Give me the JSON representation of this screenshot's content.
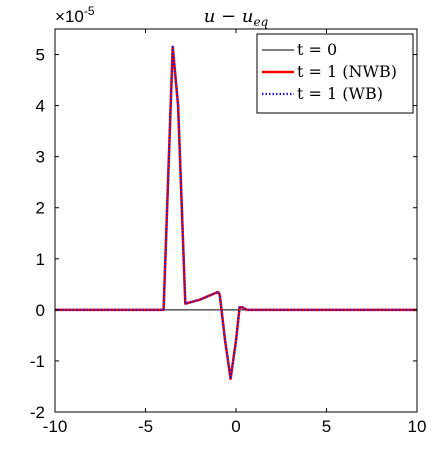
{
  "chart_data": {
    "type": "line",
    "title": "u − u",
    "title_subscript": "eq",
    "exponent_label": "×10",
    "exponent_power": "-5",
    "xlim": [
      -10,
      10
    ],
    "ylim": [
      -2,
      5.5
    ],
    "x_ticks": [
      -10,
      -5,
      0,
      5,
      10
    ],
    "x_tick_labels": [
      "-10",
      "-5",
      "0",
      "5",
      "10"
    ],
    "y_ticks": [
      -2,
      -1,
      0,
      1,
      2,
      3,
      4,
      5
    ],
    "y_tick_labels": [
      "-2",
      "-1",
      "0",
      "1",
      "2",
      "3",
      "4",
      "5"
    ],
    "grid": false,
    "legend_position": "top-right",
    "series": [
      {
        "name": "t = 0",
        "color": "#000000",
        "style": "solid",
        "x": [
          -10,
          10
        ],
        "y": [
          0,
          0
        ]
      },
      {
        "name": "t = 1 (NWB)",
        "color": "#ff0000",
        "style": "solid",
        "x": [
          -10,
          -4.0,
          -3.5,
          -3.2,
          -2.8,
          -2.0,
          -1.0,
          -0.9,
          -0.6,
          -0.3,
          0,
          0.2,
          0.35,
          0.6,
          10
        ],
        "y": [
          0,
          0,
          5.15,
          4.0,
          0.12,
          0.2,
          0.35,
          0.3,
          -0.6,
          -1.35,
          -0.6,
          0.05,
          0.05,
          0,
          0
        ]
      },
      {
        "name": "t = 1 (WB)",
        "color": "#1a1ad6",
        "style": "dotted",
        "x": [
          -10,
          -4.0,
          -3.5,
          -3.2,
          -2.8,
          -2.0,
          -1.0,
          -0.9,
          -0.6,
          -0.3,
          0,
          0.2,
          0.35,
          0.6,
          10
        ],
        "y": [
          0,
          0,
          5.15,
          4.0,
          0.12,
          0.2,
          0.35,
          0.3,
          -0.6,
          -1.35,
          -0.6,
          0.05,
          0.05,
          0,
          0
        ]
      }
    ]
  }
}
